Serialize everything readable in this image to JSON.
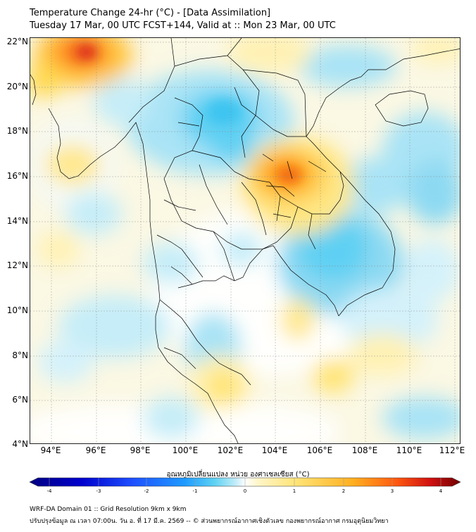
{
  "header": {
    "title_line1": "Temperature Change 24-hr (°C) - [Data Assimilation]",
    "title_line2": "Tuesday 17 Mar, 00 UTC FCST+144, Valid at :: Mon 23 Mar, 00 UTC"
  },
  "map": {
    "lat_labels": [
      "22°N",
      "20°N",
      "18°N",
      "16°N",
      "14°N",
      "12°N",
      "10°N",
      "8°N",
      "6°N",
      "4°N"
    ],
    "lon_labels": [
      "94°E",
      "96°E",
      "98°E",
      "100°E",
      "102°E",
      "104°E",
      "106°E",
      "108°E",
      "110°E",
      "112°E"
    ]
  },
  "colorbar": {
    "caption": "อุณหภูมิเปลี่ยนแปลง หน่วย องศาเซลเซียส (°C)",
    "ticks": [
      "-4",
      "-3",
      "-2",
      "-1",
      "0",
      "1",
      "2",
      "3",
      "4"
    ],
    "colors": [
      "#000080",
      "#0000cd",
      "#1e3cff",
      "#1e90ff",
      "#3cc8f0",
      "#a0e6ff",
      "#ffffff",
      "#fff0a0",
      "#ffd840",
      "#ffaa00",
      "#ff6600",
      "#e60000",
      "#800000"
    ]
  },
  "footer": {
    "line1": "WRF-DA Domain 01 :: Grid Resolution 9km x 9km",
    "line2": "ปรับปรุงข้อมูล ณ เวลา 07:00น. วัน อ. ที่ 17 มี.ค. 2569 -- © ส่วนพยากรณ์อากาศเชิงตัวเลข กองพยากรณ์อากาศ กรมอุตุนิยมวิทยา"
  }
}
